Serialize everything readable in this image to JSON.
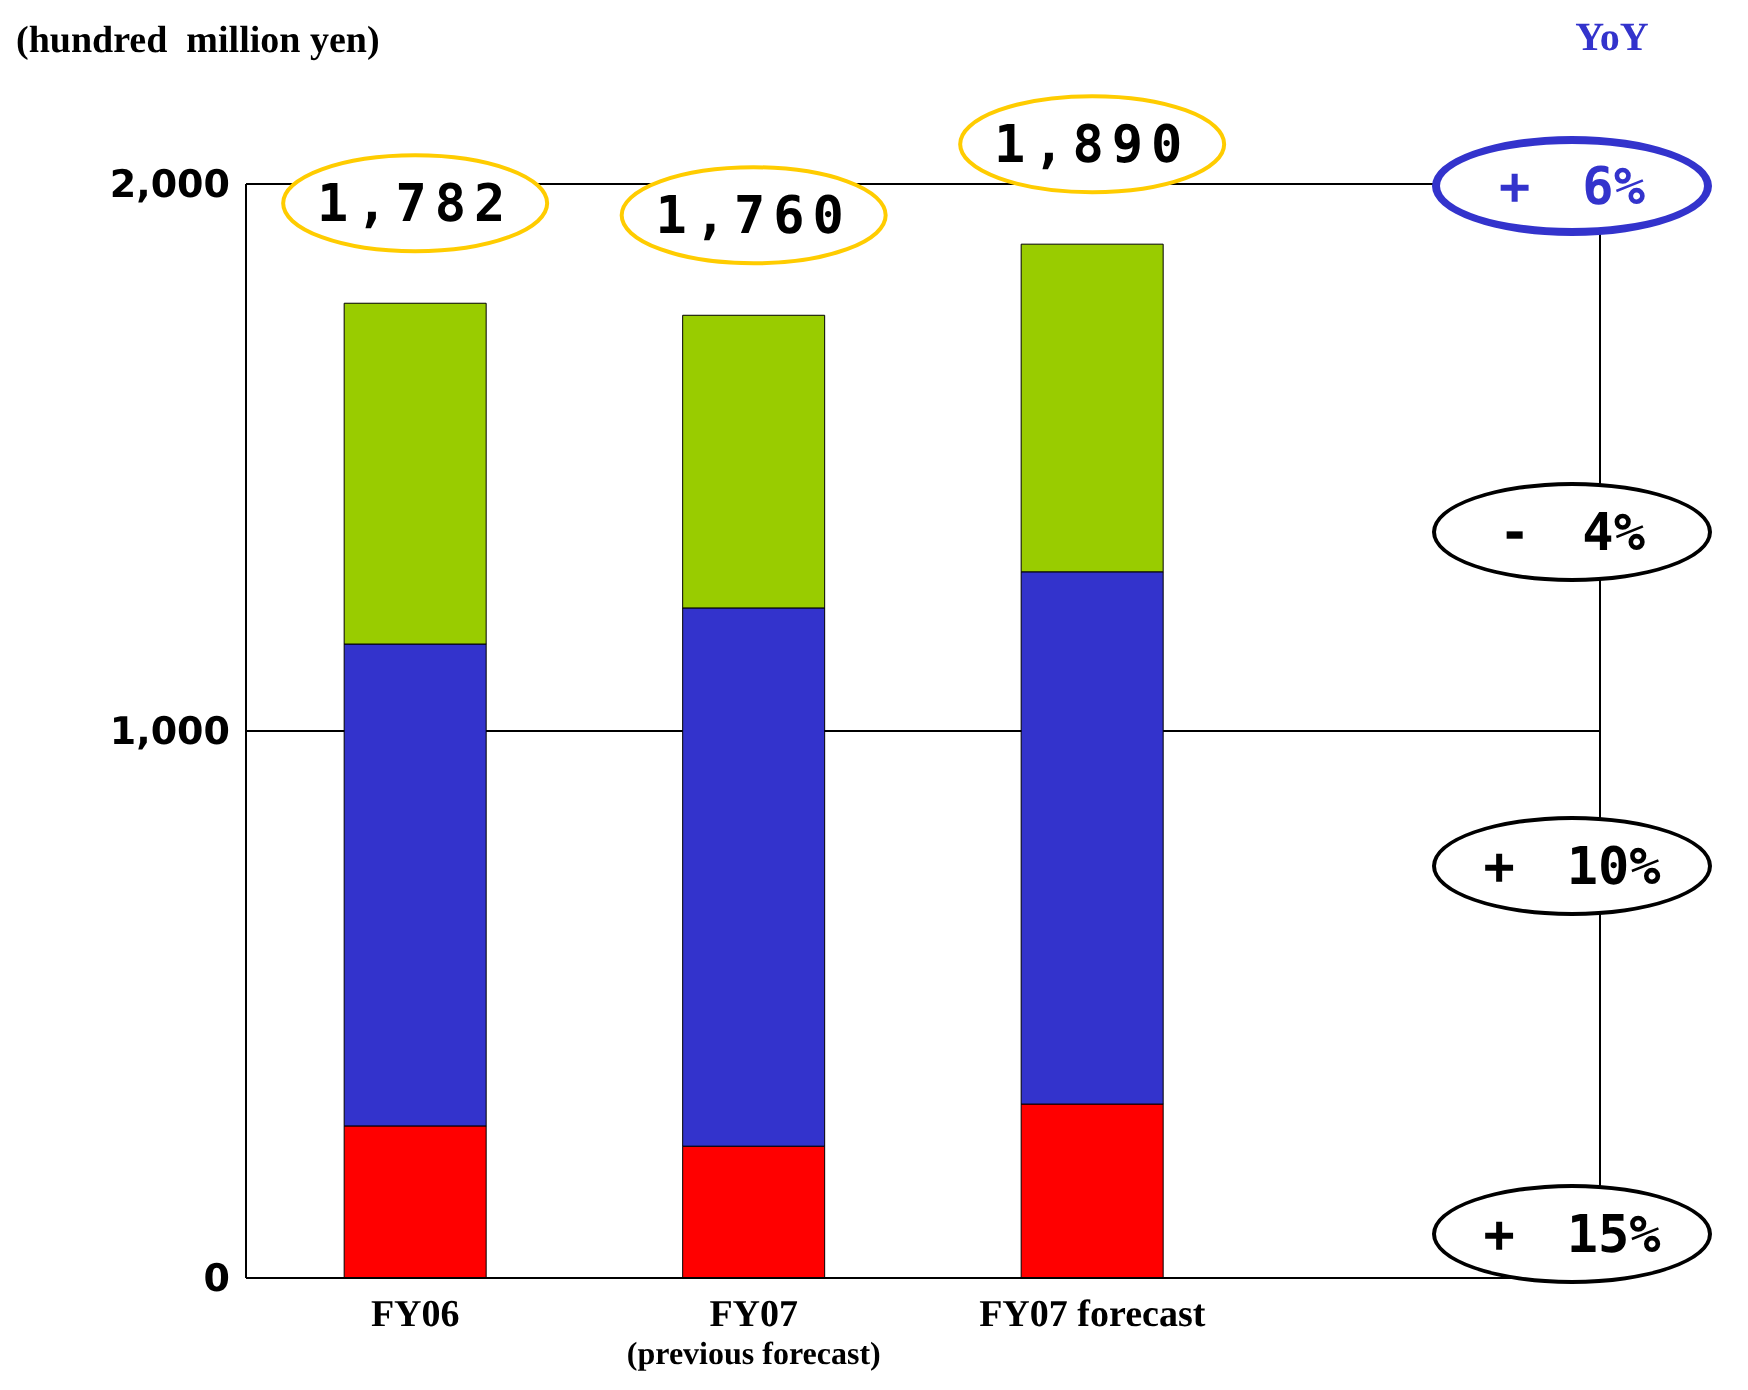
{
  "chart_data": {
    "type": "bar",
    "stacked": true,
    "ylabel": "(hundred  million yen)",
    "categories": [
      "FY06",
      "FY07\n(previous forecast)",
      "FY07 forecast",
      null
    ],
    "series": [
      {
        "color": "#ff0000",
        "values": [
          278,
          241,
          318,
          null
        ]
      },
      {
        "color": "#3333cc",
        "values": [
          881,
          984,
          973,
          null
        ]
      },
      {
        "color": "#99cc00",
        "values": [
          623,
          535,
          599,
          null
        ]
      }
    ],
    "totals": [
      "1,782",
      "1,760",
      "1,890"
    ],
    "ylim": [
      0,
      2000
    ],
    "yticks": [
      {
        "value": 0,
        "label": "0"
      },
      {
        "value": 1000,
        "label": "1,000"
      },
      {
        "value": 2000,
        "label": "2,000"
      }
    ],
    "grid": "y",
    "annotations": [
      "YoY",
      "+　6%",
      "-　4%",
      "+　10%",
      "+　15%"
    ]
  }
}
